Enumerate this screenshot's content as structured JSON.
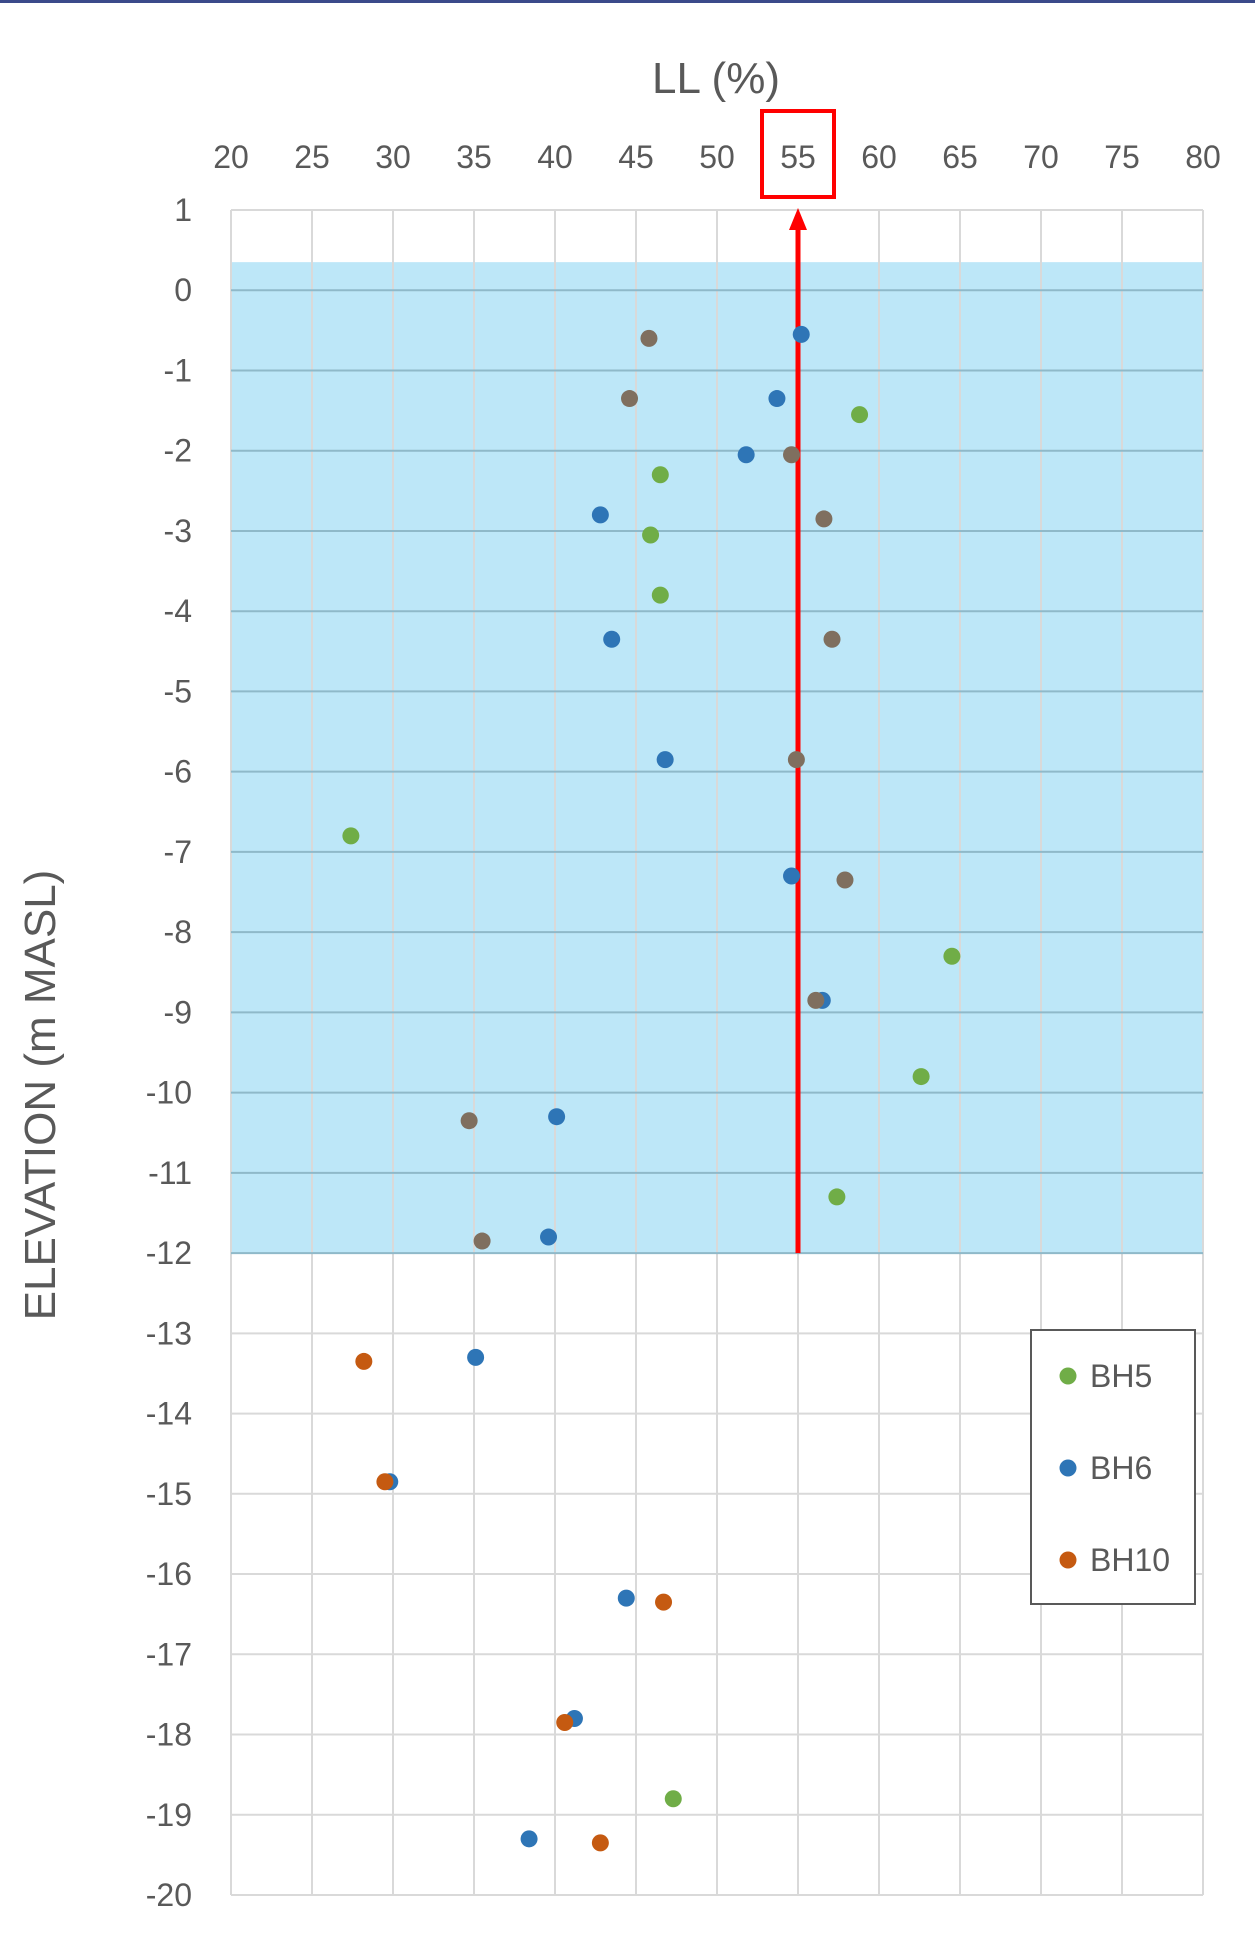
{
  "chart_data": {
    "type": "scatter",
    "xlabel": "LL (%)",
    "ylabel": "ELEVATION (m MASL)",
    "xlim": [
      20,
      80
    ],
    "ylim": [
      -20,
      1
    ],
    "x_ticks": [
      20,
      25,
      30,
      35,
      40,
      45,
      50,
      55,
      60,
      65,
      70,
      75,
      80
    ],
    "y_ticks": [
      1,
      0,
      -1,
      -2,
      -3,
      -4,
      -5,
      -6,
      -7,
      -8,
      -9,
      -10,
      -11,
      -12,
      -13,
      -14,
      -15,
      -16,
      -17,
      -18,
      -19,
      -20
    ],
    "grid": true,
    "legend_position": "bottom-right",
    "shaded_band": {
      "y_from": 0.35,
      "y_to": -12,
      "color": "#bde7f8"
    },
    "reference_line": {
      "x": 55,
      "y_from": -12,
      "y_to": 1,
      "color": "#ff0000",
      "highlight_tick": "55"
    },
    "series": [
      {
        "name": "BH5",
        "color": "#70ad47",
        "points": [
          [
            58.8,
            -1.55
          ],
          [
            46.5,
            -2.3
          ],
          [
            45.9,
            -3.05
          ],
          [
            46.5,
            -3.8
          ],
          [
            27.4,
            -6.8
          ],
          [
            64.5,
            -8.3
          ],
          [
            62.6,
            -9.8
          ],
          [
            57.4,
            -11.3
          ],
          [
            47.3,
            -18.8
          ]
        ]
      },
      {
        "name": "BH6",
        "color": "#2e75b6",
        "points": [
          [
            55.2,
            -0.55
          ],
          [
            53.7,
            -1.35
          ],
          [
            51.8,
            -2.05
          ],
          [
            42.8,
            -2.8
          ],
          [
            43.5,
            -4.35
          ],
          [
            46.8,
            -5.85
          ],
          [
            54.6,
            -7.3
          ],
          [
            56.5,
            -8.85
          ],
          [
            40.1,
            -10.3
          ],
          [
            39.6,
            -11.8
          ],
          [
            35.1,
            -13.3
          ],
          [
            29.8,
            -14.85
          ],
          [
            44.4,
            -16.3
          ],
          [
            41.2,
            -17.8
          ],
          [
            38.4,
            -19.3
          ]
        ]
      },
      {
        "name": "BH10",
        "color": "#c55a11",
        "points": [
          [
            28.2,
            -13.35
          ],
          [
            29.5,
            -14.85
          ],
          [
            46.7,
            -16.35
          ],
          [
            40.6,
            -17.85
          ],
          [
            42.8,
            -19.35
          ]
        ]
      },
      {
        "name": "",
        "color": "#7f6f5f",
        "points": [
          [
            45.8,
            -0.6
          ],
          [
            44.6,
            -1.35
          ],
          [
            54.6,
            -2.05
          ],
          [
            56.6,
            -2.85
          ],
          [
            57.1,
            -4.35
          ],
          [
            54.9,
            -5.85
          ],
          [
            57.9,
            -7.35
          ],
          [
            56.1,
            -8.85
          ],
          [
            34.7,
            -10.35
          ],
          [
            35.5,
            -11.85
          ]
        ]
      }
    ]
  }
}
